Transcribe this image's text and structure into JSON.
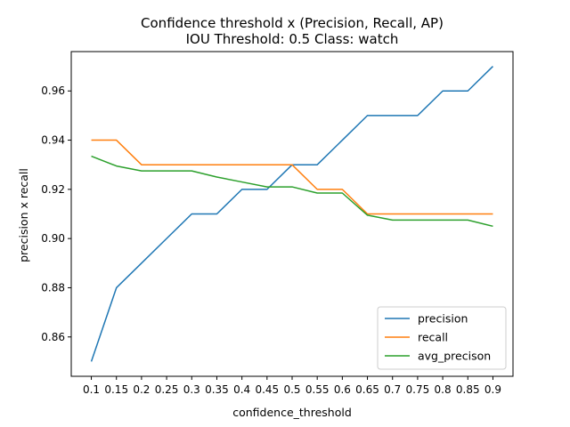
{
  "chart_data": {
    "type": "line",
    "title": "Confidence threshold x (Precision, Recall, AP)",
    "subtitle": "IOU Threshold: 0.5 Class: watch",
    "xlabel": "confidence_threshold",
    "ylabel": "precision x recall",
    "x": [
      0.1,
      0.15,
      0.2,
      0.25,
      0.3,
      0.35,
      0.4,
      0.45,
      0.5,
      0.55,
      0.6,
      0.65,
      0.7,
      0.75,
      0.8,
      0.85,
      0.9
    ],
    "x_tick_labels": [
      "0.1",
      "0.15",
      "0.2",
      "0.25",
      "0.3",
      "0.35",
      "0.4",
      "0.45",
      "0.5",
      "0.55",
      "0.6",
      "0.65",
      "0.7",
      "0.75",
      "0.8",
      "0.85",
      "0.9"
    ],
    "y_ticks": [
      0.86,
      0.88,
      0.9,
      0.92,
      0.94,
      0.96
    ],
    "y_tick_labels": [
      "0.86",
      "0.88",
      "0.90",
      "0.92",
      "0.94",
      "0.96"
    ],
    "xlim": [
      0.06,
      0.94
    ],
    "ylim": [
      0.844,
      0.976
    ],
    "grid": false,
    "legend_position": "lower-right",
    "series": [
      {
        "name": "precision",
        "color": "#1f77b4",
        "values": [
          0.85,
          0.88,
          0.89,
          0.9,
          0.91,
          0.91,
          0.92,
          0.92,
          0.93,
          0.93,
          0.94,
          0.95,
          0.95,
          0.95,
          0.96,
          0.96,
          0.97
        ]
      },
      {
        "name": "recall",
        "color": "#ff7f0e",
        "values": [
          0.94,
          0.94,
          0.93,
          0.93,
          0.93,
          0.93,
          0.93,
          0.93,
          0.93,
          0.92,
          0.92,
          0.91,
          0.91,
          0.91,
          0.91,
          0.91,
          0.91
        ]
      },
      {
        "name": "avg_precison",
        "color": "#2ca02c",
        "values": [
          0.9335,
          0.9295,
          0.9275,
          0.9275,
          0.9275,
          0.925,
          0.923,
          0.921,
          0.921,
          0.9185,
          0.9185,
          0.9095,
          0.9075,
          0.9075,
          0.9075,
          0.9075,
          0.905
        ]
      }
    ]
  }
}
